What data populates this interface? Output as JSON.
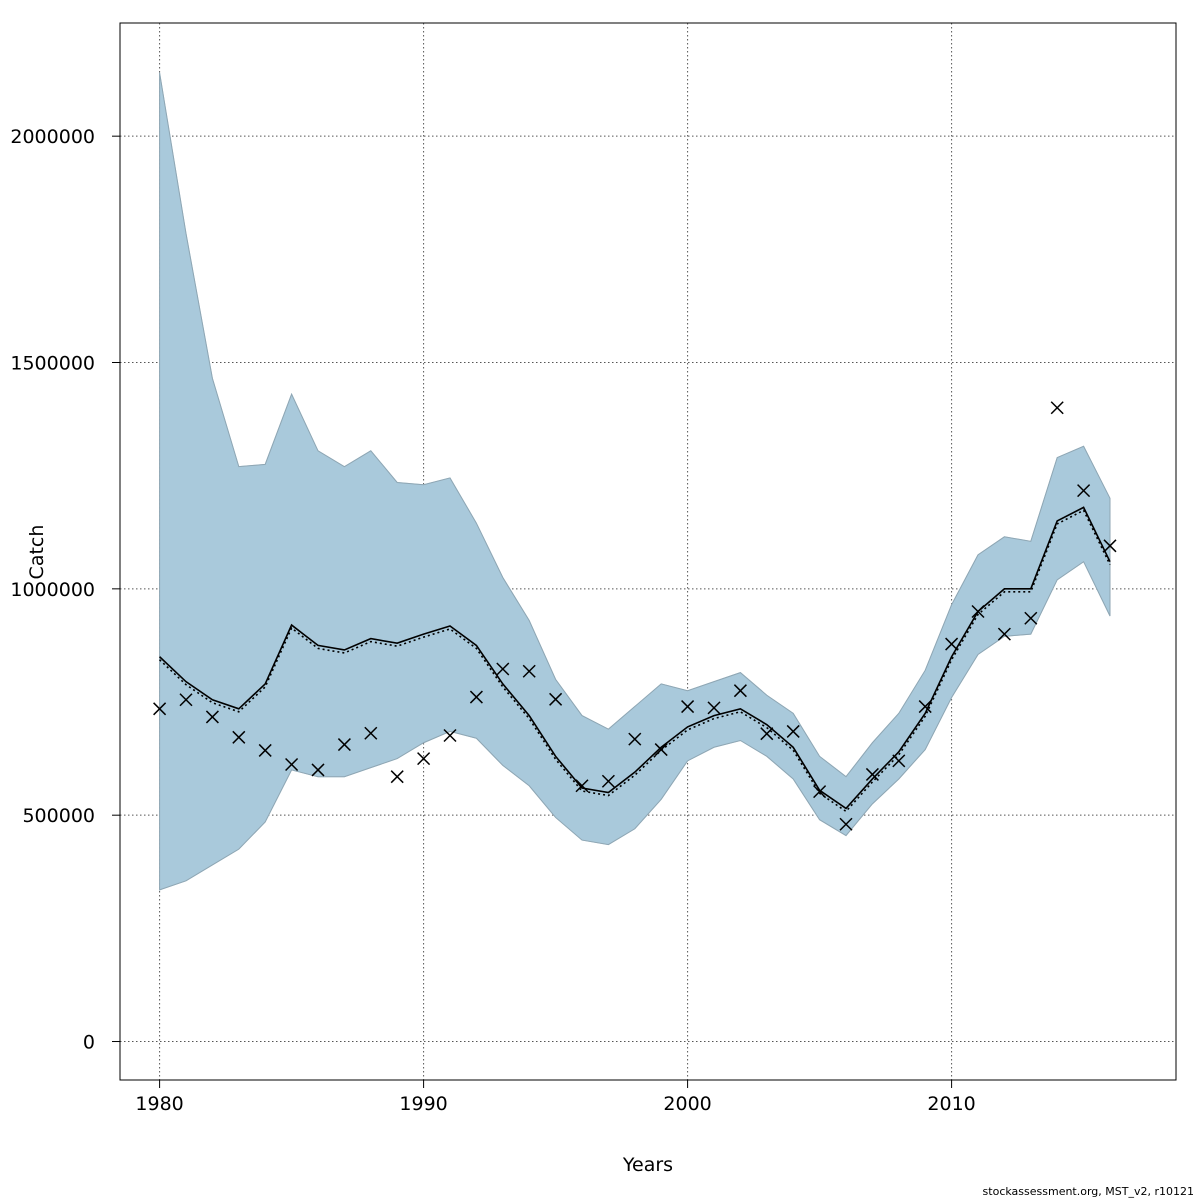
{
  "chart_data": {
    "type": "line",
    "xlabel": "Years",
    "ylabel": "Catch",
    "xlim": [
      1978.5,
      2018.5
    ],
    "ylim": [
      -85000,
      2250000
    ],
    "x_ticks": [
      1980,
      1990,
      2000,
      2010
    ],
    "y_ticks": [
      0,
      500000,
      1000000,
      1500000,
      2000000
    ],
    "grid": true,
    "colors": {
      "band": "#a7c7d8",
      "band_edge": "#8fa6b3",
      "line": "#000000",
      "points": "#000000"
    },
    "x": [
      1980,
      1981,
      1982,
      1983,
      1984,
      1985,
      1986,
      1987,
      1988,
      1989,
      1990,
      1991,
      1992,
      1993,
      1994,
      1995,
      1996,
      1997,
      1998,
      1999,
      2000,
      2001,
      2002,
      2003,
      2004,
      2005,
      2006,
      2007,
      2008,
      2009,
      2010,
      2011,
      2012,
      2013,
      2014,
      2015,
      2016
    ],
    "series": [
      {
        "role": "estimate",
        "values": [
          850000,
          795000,
          755000,
          735000,
          790000,
          920000,
          875000,
          865000,
          890000,
          880000,
          900000,
          918000,
          875000,
          790000,
          720000,
          630000,
          560000,
          550000,
          595000,
          650000,
          695000,
          720000,
          735000,
          700000,
          650000,
          555000,
          515000,
          580000,
          640000,
          725000,
          850000,
          950000,
          1000000,
          1000000,
          1150000,
          1180000,
          1060000
        ]
      },
      {
        "role": "upper",
        "values": [
          2140000,
          1785000,
          1465000,
          1270000,
          1275000,
          1430000,
          1305000,
          1270000,
          1305000,
          1235000,
          1230000,
          1245000,
          1145000,
          1025000,
          930000,
          800000,
          720000,
          690000,
          740000,
          790000,
          775000,
          795000,
          815000,
          765000,
          725000,
          630000,
          585000,
          660000,
          725000,
          820000,
          965000,
          1075000,
          1115000,
          1105000,
          1290000,
          1315000,
          1200000
        ]
      },
      {
        "role": "lower",
        "values": [
          335000,
          355000,
          390000,
          425000,
          485000,
          600000,
          585000,
          585000,
          605000,
          625000,
          660000,
          685000,
          670000,
          610000,
          565000,
          495000,
          445000,
          435000,
          470000,
          535000,
          620000,
          650000,
          665000,
          630000,
          580000,
          490000,
          455000,
          525000,
          580000,
          645000,
          760000,
          855000,
          895000,
          900000,
          1020000,
          1060000,
          940000
        ]
      },
      {
        "role": "observed",
        "values": [
          735000,
          755000,
          717000,
          672000,
          643000,
          612000,
          600000,
          656000,
          681000,
          585000,
          625000,
          676000,
          761000,
          823000,
          818000,
          756000,
          565000,
          575000,
          668000,
          645000,
          740000,
          737000,
          775000,
          680000,
          685000,
          552000,
          480000,
          590000,
          620000,
          740000,
          878000,
          950000,
          900000,
          935000,
          1400000,
          1217000,
          1095000
        ]
      }
    ]
  },
  "footer": {
    "text": "stockassessment.org, MST_v2, r10121"
  }
}
